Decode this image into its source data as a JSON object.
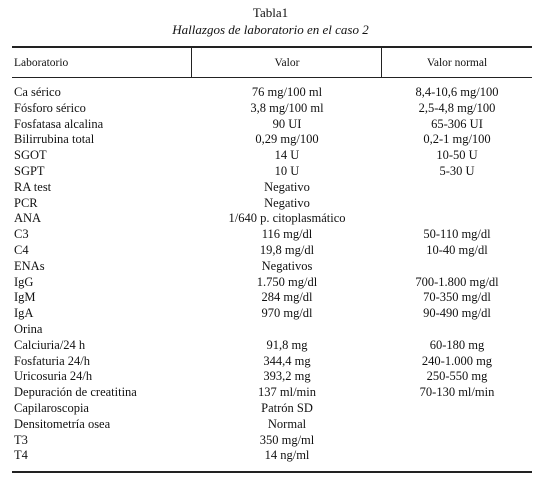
{
  "table": {
    "title": "Tabla1",
    "subtitle": "Hallazgos de laboratorio en el caso 2",
    "header": [
      "Laboratorio",
      "Valor",
      "Valor normal"
    ],
    "rows": [
      [
        "Ca sérico",
        "76 mg/100 ml",
        "8,4-10,6 mg/100"
      ],
      [
        "Fósforo sérico",
        "3,8 mg/100 ml",
        "2,5-4,8 mg/100"
      ],
      [
        "Fosfatasa alcalina",
        "90 UI",
        "65-306 UI"
      ],
      [
        "Bilirrubina total",
        "0,29 mg/100",
        "0,2-1 mg/100"
      ],
      [
        "SGOT",
        "14 U",
        "10-50 U"
      ],
      [
        "SGPT",
        "10 U",
        "5-30 U"
      ],
      [
        "RA test",
        "Negativo"
      ],
      [
        "PCR",
        "Negativo"
      ],
      [
        "ANA",
        "1/640 p. citoplasmático"
      ],
      [
        "C3",
        "116 mg/dl",
        "50-110 mg/dl"
      ],
      [
        "C4",
        "19,8 mg/dl",
        "10-40 mg/dl"
      ],
      [
        "ENAs",
        "Negativos"
      ],
      [
        "IgG",
        "1.750 mg/dl",
        "700-1.800 mg/dl"
      ],
      [
        "IgM",
        "284 mg/dl",
        "70-350 mg/dl"
      ],
      [
        "IgA",
        "970 mg/dl",
        "90-490 mg/dl"
      ],
      [
        "Orina"
      ],
      [
        "Calciuria/24 h",
        "91,8 mg",
        "60-180 mg"
      ],
      [
        "Fosfaturia 24/h",
        "344,4 mg",
        "240-1.000 mg"
      ],
      [
        "Uricosuria 24/h",
        "393,2 mg",
        "250-550 mg"
      ],
      [
        "Depuración de creatitina",
        "137 ml/min",
        "70-130 ml/min"
      ],
      [
        "Capilaroscopia",
        "Patrón SD"
      ],
      [
        "Densitometría osea",
        "Normal"
      ],
      [
        "T3",
        "350 mg/ml"
      ],
      [
        "T4",
        "14 ng/ml"
      ]
    ]
  }
}
